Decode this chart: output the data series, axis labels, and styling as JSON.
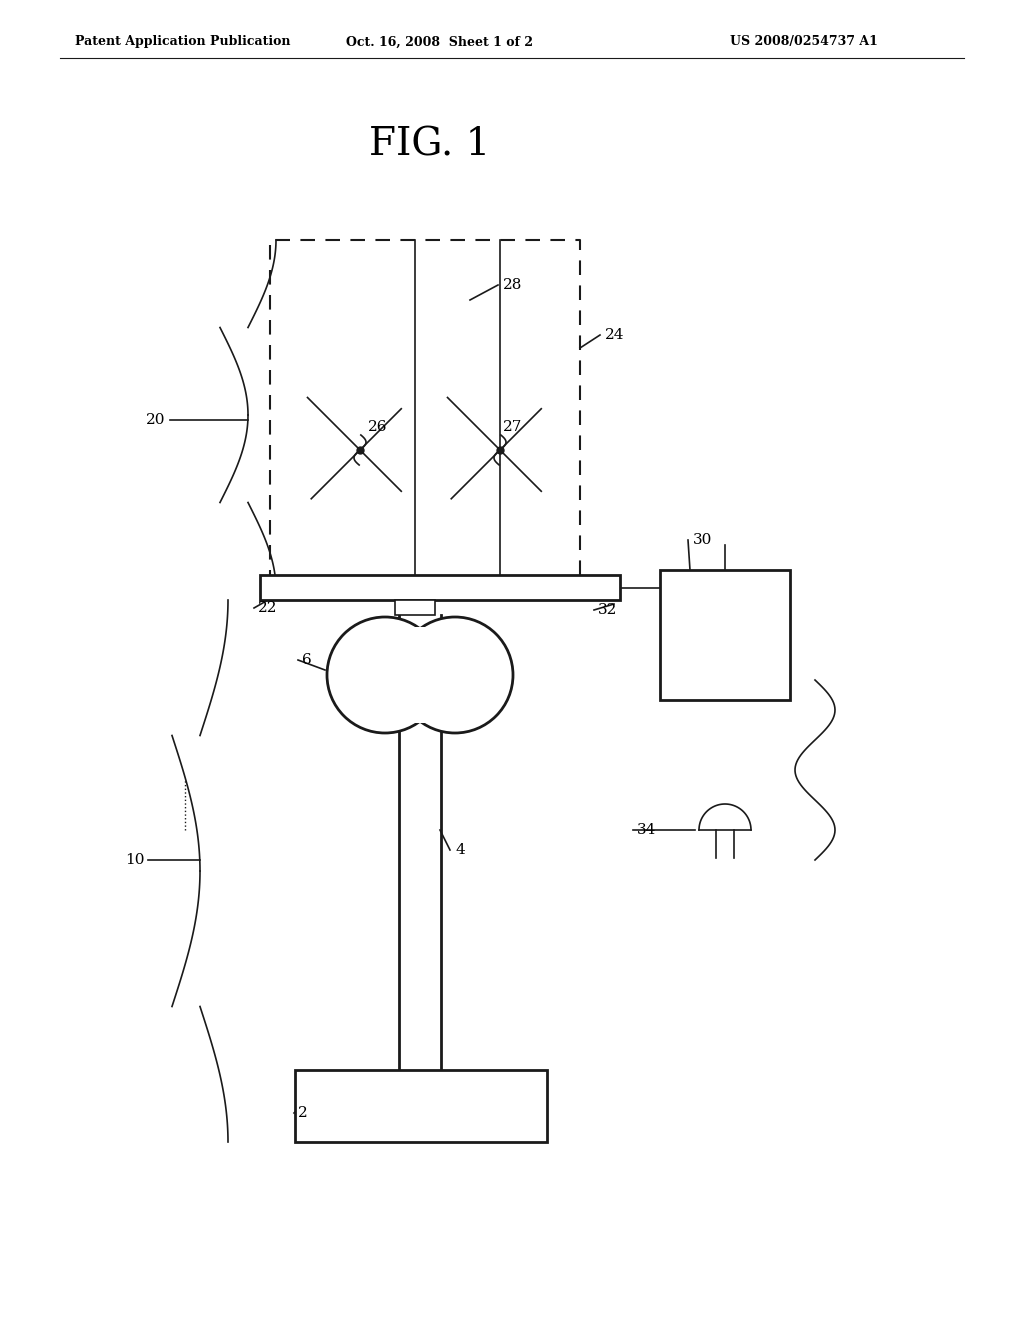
{
  "title": "FIG. 1",
  "header_left": "Patent Application Publication",
  "header_center": "Oct. 16, 2008  Sheet 1 of 2",
  "header_right": "US 2008/0254737 A1",
  "bg_color": "#ffffff",
  "line_color": "#1a1a1a",
  "fig_width": 10.24,
  "fig_height": 13.2,
  "dpi": 100
}
